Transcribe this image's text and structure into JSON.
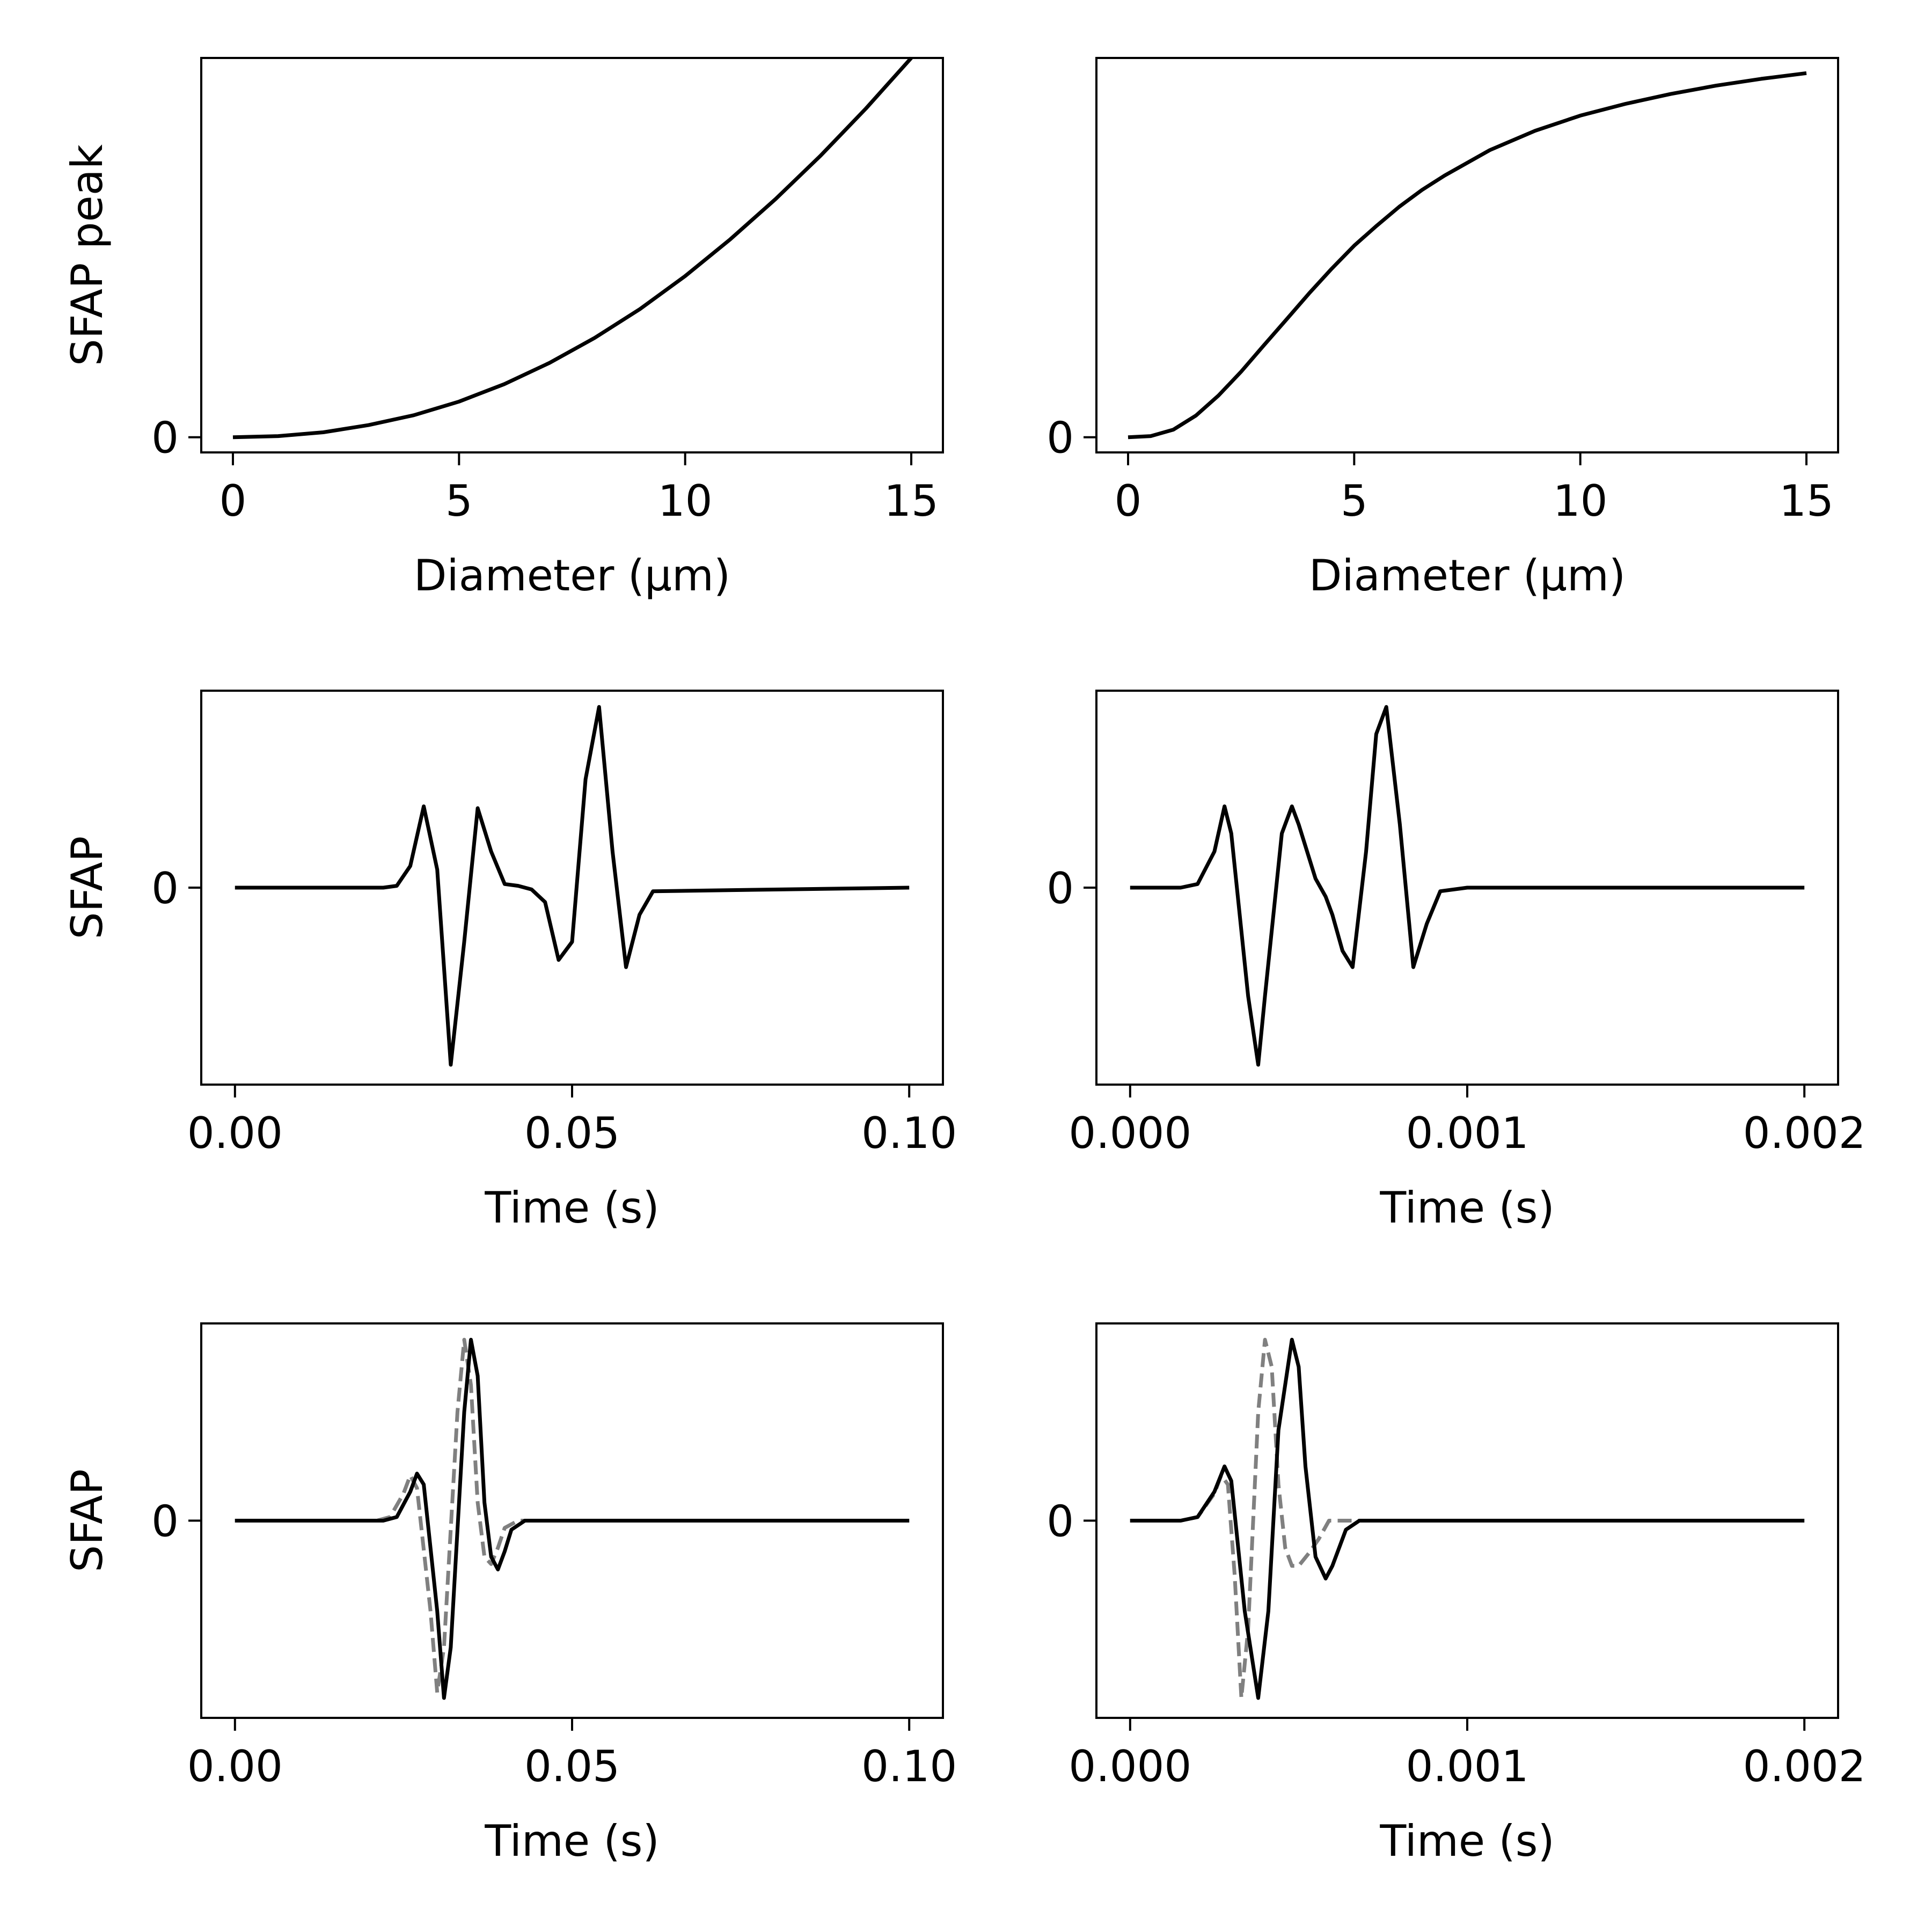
{
  "chart_data": [
    {
      "type": "line",
      "xlabel": "Diameter (μm)",
      "ylabel": "SFAP peak",
      "xlim": [
        -0.7,
        15.7
      ],
      "ylim": [
        -0.04,
        1.0
      ],
      "xticks": [
        {
          "v": 0,
          "label": "0"
        },
        {
          "v": 5,
          "label": "5"
        },
        {
          "v": 10,
          "label": "10"
        },
        {
          "v": 15,
          "label": "15"
        }
      ],
      "yticks": [
        {
          "v": 0,
          "label": "0"
        }
      ],
      "series": [
        {
          "style": "solid",
          "color": "#000000",
          "x": [
            0,
            1,
            2,
            3,
            4,
            5,
            6,
            7,
            8,
            9,
            10,
            11,
            12,
            13,
            14,
            15
          ],
          "y": [
            0,
            0.003,
            0.013,
            0.032,
            0.058,
            0.094,
            0.14,
            0.196,
            0.262,
            0.338,
            0.425,
            0.522,
            0.628,
            0.743,
            0.867,
            1.0
          ]
        }
      ]
    },
    {
      "type": "line",
      "xlabel": "Diameter (μm)",
      "ylabel": "",
      "xlim": [
        -0.7,
        15.7
      ],
      "ylim": [
        -0.04,
        1.0
      ],
      "xticks": [
        {
          "v": 0,
          "label": "0"
        },
        {
          "v": 5,
          "label": "5"
        },
        {
          "v": 10,
          "label": "10"
        },
        {
          "v": 15,
          "label": "15"
        }
      ],
      "yticks": [
        {
          "v": 0,
          "label": "0"
        }
      ],
      "series": [
        {
          "style": "solid",
          "color": "#000000",
          "x": [
            0,
            0.5,
            1,
            1.5,
            2,
            2.5,
            3,
            3.5,
            4,
            4.5,
            5,
            5.5,
            6,
            6.5,
            7,
            8,
            9,
            10,
            11,
            12,
            13,
            14,
            15
          ],
          "y": [
            0,
            0.003,
            0.02,
            0.057,
            0.11,
            0.173,
            0.242,
            0.31,
            0.379,
            0.444,
            0.505,
            0.558,
            0.608,
            0.652,
            0.69,
            0.757,
            0.808,
            0.848,
            0.879,
            0.905,
            0.927,
            0.945,
            0.96
          ]
        }
      ]
    },
    {
      "type": "line",
      "xlabel": "Time (s)",
      "ylabel": "SFAP",
      "xlim": [
        -0.005,
        0.105
      ],
      "ylim": [
        -1.09,
        1.09
      ],
      "xticks": [
        {
          "v": 0,
          "label": "0.00"
        },
        {
          "v": 0.05,
          "label": "0.05"
        },
        {
          "v": 0.1,
          "label": "0.10"
        }
      ],
      "yticks": [
        {
          "v": 0,
          "label": "0"
        }
      ],
      "series": [
        {
          "style": "solid",
          "color": "#000000",
          "x": [
            0,
            0.022,
            0.024,
            0.026,
            0.028,
            0.03,
            0.032,
            0.034,
            0.036,
            0.038,
            0.04,
            0.042,
            0.044,
            0.046,
            0.048,
            0.05,
            0.052,
            0.054,
            0.056,
            0.058,
            0.06,
            0.062,
            0.1
          ],
          "y": [
            0,
            0,
            0.01,
            0.12,
            0.45,
            0.1,
            -0.98,
            -0.3,
            0.44,
            0.2,
            0.02,
            0.01,
            -0.01,
            -0.08,
            -0.4,
            -0.3,
            0.6,
            1.0,
            0.2,
            -0.44,
            -0.15,
            -0.02,
            0
          ]
        }
      ]
    },
    {
      "type": "line",
      "xlabel": "Time (s)",
      "ylabel": "",
      "xlim": [
        -0.0001,
        0.0021
      ],
      "ylim": [
        -1.09,
        1.09
      ],
      "xticks": [
        {
          "v": 0,
          "label": "0.000"
        },
        {
          "v": 0.001,
          "label": "0.001"
        },
        {
          "v": 0.002,
          "label": "0.002"
        }
      ],
      "yticks": [
        {
          "v": 0,
          "label": "0"
        }
      ],
      "series": [
        {
          "style": "solid",
          "color": "#000000",
          "x": [
            0,
            0.00015,
            0.0002,
            0.00025,
            0.00028,
            0.0003,
            0.00035,
            0.00038,
            0.0004,
            0.00045,
            0.00048,
            0.0005,
            0.00055,
            0.00058,
            0.0006,
            0.00063,
            0.00066,
            0.0007,
            0.00073,
            0.00076,
            0.0008,
            0.00084,
            0.00088,
            0.00092,
            0.001,
            0.002
          ],
          "y": [
            0,
            0,
            0.02,
            0.2,
            0.45,
            0.3,
            -0.6,
            -0.98,
            -0.6,
            0.3,
            0.45,
            0.35,
            0.05,
            -0.05,
            -0.15,
            -0.35,
            -0.44,
            0.2,
            0.85,
            1.0,
            0.35,
            -0.44,
            -0.2,
            -0.02,
            0,
            0
          ]
        }
      ]
    },
    {
      "type": "line",
      "xlabel": "Time (s)",
      "ylabel": "SFAP",
      "xlim": [
        -0.005,
        0.105
      ],
      "ylim": [
        -1.09,
        1.09
      ],
      "xticks": [
        {
          "v": 0,
          "label": "0.00"
        },
        {
          "v": 0.05,
          "label": "0.05"
        },
        {
          "v": 0.1,
          "label": "0.10"
        }
      ],
      "yticks": [
        {
          "v": 0,
          "label": "0"
        }
      ],
      "series": [
        {
          "style": "dashed",
          "color": "#808080",
          "x": [
            0,
            0.021,
            0.023,
            0.025,
            0.026,
            0.027,
            0.029,
            0.03,
            0.031,
            0.033,
            0.034,
            0.035,
            0.036,
            0.037,
            0.038,
            0.039,
            0.04,
            0.042,
            0.1
          ],
          "y": [
            0,
            0,
            0.02,
            0.15,
            0.25,
            0.18,
            -0.5,
            -0.95,
            -0.7,
            0.6,
            1.0,
            0.75,
            0.1,
            -0.2,
            -0.24,
            -0.15,
            -0.04,
            0,
            0
          ]
        },
        {
          "style": "solid",
          "color": "#000000",
          "x": [
            0,
            0.022,
            0.024,
            0.026,
            0.027,
            0.028,
            0.03,
            0.031,
            0.032,
            0.034,
            0.035,
            0.036,
            0.037,
            0.038,
            0.039,
            0.04,
            0.041,
            0.043,
            0.1
          ],
          "y": [
            0,
            0,
            0.02,
            0.16,
            0.26,
            0.2,
            -0.5,
            -0.98,
            -0.7,
            0.6,
            1.0,
            0.8,
            0.1,
            -0.2,
            -0.27,
            -0.17,
            -0.05,
            0,
            0
          ]
        }
      ]
    },
    {
      "type": "line",
      "xlabel": "Time (s)",
      "ylabel": "",
      "xlim": [
        -0.0001,
        0.0021
      ],
      "ylim": [
        -1.09,
        1.09
      ],
      "xticks": [
        {
          "v": 0,
          "label": "0.000"
        },
        {
          "v": 0.001,
          "label": "0.001"
        },
        {
          "v": 0.002,
          "label": "0.002"
        }
      ],
      "yticks": [
        {
          "v": 0,
          "label": "0"
        }
      ],
      "series": [
        {
          "style": "dashed",
          "color": "#808080",
          "x": [
            0,
            0.00015,
            0.0002,
            0.00025,
            0.00027,
            0.00029,
            0.00031,
            0.00033,
            0.00035,
            0.00038,
            0.0004,
            0.00042,
            0.00044,
            0.00046,
            0.00048,
            0.0005,
            0.00053,
            0.00056,
            0.00059,
            0.002
          ],
          "y": [
            0,
            0,
            0.02,
            0.15,
            0.25,
            0.2,
            -0.3,
            -0.98,
            -0.6,
            0.6,
            1.0,
            0.85,
            0.2,
            -0.15,
            -0.25,
            -0.25,
            -0.18,
            -0.1,
            0,
            0
          ]
        },
        {
          "style": "solid",
          "color": "#000000",
          "x": [
            0,
            0.00015,
            0.0002,
            0.00025,
            0.00028,
            0.0003,
            0.00034,
            0.00038,
            0.00041,
            0.00044,
            0.00048,
            0.0005,
            0.00052,
            0.00055,
            0.00058,
            0.0006,
            0.00064,
            0.00068,
            0.0007,
            0.002
          ],
          "y": [
            0,
            0,
            0.02,
            0.16,
            0.3,
            0.22,
            -0.5,
            -0.98,
            -0.5,
            0.5,
            1.0,
            0.85,
            0.3,
            -0.2,
            -0.32,
            -0.25,
            -0.05,
            0,
            0,
            0
          ]
        }
      ]
    }
  ]
}
